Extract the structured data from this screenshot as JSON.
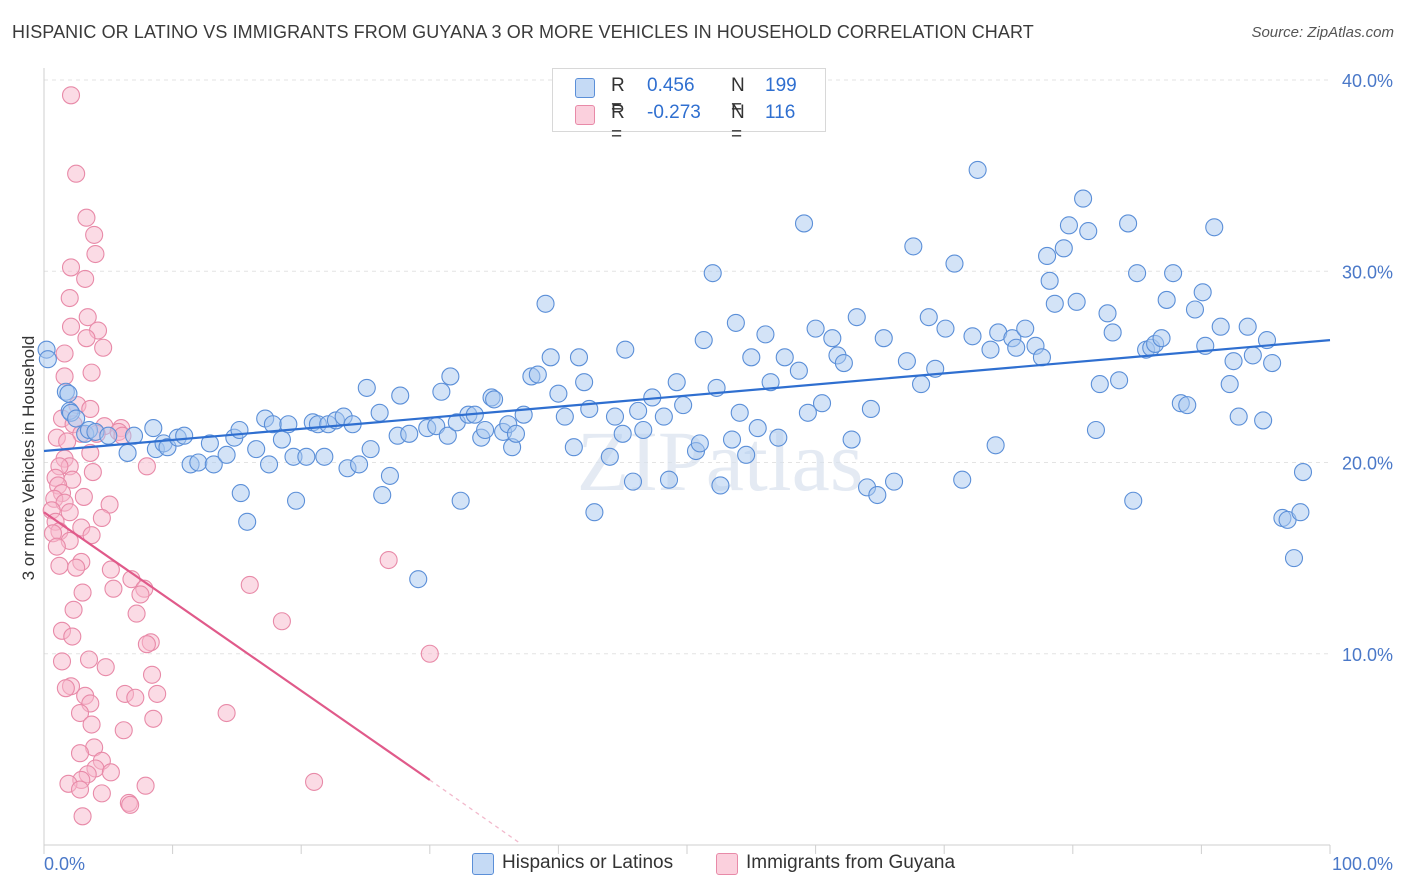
{
  "title": "HISPANIC OR LATINO VS IMMIGRANTS FROM GUYANA 3 OR MORE VEHICLES IN HOUSEHOLD CORRELATION CHART",
  "source": "Source: ZipAtlas.com",
  "watermark": "ZIPatlas",
  "legend": {
    "rows": [
      {
        "r_label": "R =",
        "r_value": "0.456",
        "n_label": "N =",
        "n_value": "199",
        "color": "#a8c8f0"
      },
      {
        "r_label": "R =",
        "r_value": "-0.273",
        "n_label": "N =",
        "n_value": "116",
        "color": "#f8b8cc"
      }
    ]
  },
  "bottom_legend": [
    {
      "label": "Hispanics or Latinos",
      "color": "#a8c8f0"
    },
    {
      "label": "Immigrants from Guyana",
      "color": "#f8b8cc"
    }
  ],
  "chart_data": {
    "type": "scatter",
    "xlabel": "",
    "ylabel": "3 or more Vehicles in Household",
    "xlim": [
      0,
      100
    ],
    "ylim": [
      0,
      40
    ],
    "x_tick_labels": [
      "0.0%",
      "100.0%"
    ],
    "y_ticks": [
      10,
      20,
      30,
      40
    ],
    "y_tick_labels": [
      "10.0%",
      "20.0%",
      "30.0%",
      "40.0%"
    ],
    "grid": true,
    "legend_position": "top-center",
    "colors": {
      "blue_fill": "#a8c8f0",
      "blue_stroke": "#5b8fd8",
      "blue_line": "#2f6fd0",
      "pink_fill": "#f8b8cc",
      "pink_stroke": "#e88aa8",
      "pink_line": "#e05a8a"
    },
    "series": [
      {
        "name": "Hispanics or Latinos",
        "trend": {
          "x": [
            0,
            100
          ],
          "y": [
            20.6,
            26.4
          ]
        },
        "points": [
          [
            0.2,
            25.9
          ],
          [
            0.3,
            25.4
          ],
          [
            1.7,
            23.7
          ],
          [
            1.9,
            23.6
          ],
          [
            2.0,
            22.7
          ],
          [
            2.1,
            22.6
          ],
          [
            2.5,
            22.3
          ],
          [
            3.2,
            21.5
          ],
          [
            3.5,
            21.7
          ],
          [
            4.0,
            21.6
          ],
          [
            5.0,
            21.4
          ],
          [
            6.5,
            20.5
          ],
          [
            7.0,
            21.4
          ],
          [
            8.5,
            21.8
          ],
          [
            8.7,
            20.7
          ],
          [
            9.3,
            21.0
          ],
          [
            9.6,
            20.8
          ],
          [
            10.4,
            21.3
          ],
          [
            10.9,
            21.4
          ],
          [
            11.4,
            19.9
          ],
          [
            12.0,
            20.0
          ],
          [
            12.9,
            21.0
          ],
          [
            13.2,
            19.9
          ],
          [
            14.2,
            20.4
          ],
          [
            14.8,
            21.3
          ],
          [
            15.2,
            21.7
          ],
          [
            15.3,
            18.4
          ],
          [
            15.8,
            16.9
          ],
          [
            16.5,
            20.7
          ],
          [
            17.2,
            22.3
          ],
          [
            17.5,
            19.9
          ],
          [
            17.8,
            22.0
          ],
          [
            18.5,
            21.2
          ],
          [
            19.0,
            22.0
          ],
          [
            19.4,
            20.3
          ],
          [
            19.6,
            18.0
          ],
          [
            20.4,
            20.3
          ],
          [
            20.9,
            22.1
          ],
          [
            21.3,
            22.0
          ],
          [
            21.8,
            20.3
          ],
          [
            22.1,
            22.0
          ],
          [
            22.7,
            22.2
          ],
          [
            23.3,
            22.4
          ],
          [
            23.6,
            19.7
          ],
          [
            24.0,
            22.0
          ],
          [
            24.5,
            19.9
          ],
          [
            25.1,
            23.9
          ],
          [
            25.4,
            20.7
          ],
          [
            26.1,
            22.6
          ],
          [
            26.3,
            18.3
          ],
          [
            26.9,
            19.3
          ],
          [
            27.5,
            21.4
          ],
          [
            27.7,
            23.5
          ],
          [
            28.4,
            21.5
          ],
          [
            29.1,
            13.9
          ],
          [
            29.8,
            21.8
          ],
          [
            30.5,
            21.9
          ],
          [
            30.9,
            23.7
          ],
          [
            31.4,
            21.4
          ],
          [
            31.6,
            24.5
          ],
          [
            32.1,
            22.1
          ],
          [
            32.4,
            18.0
          ],
          [
            33.0,
            22.5
          ],
          [
            33.5,
            22.5
          ],
          [
            34.0,
            21.3
          ],
          [
            34.3,
            21.7
          ],
          [
            34.8,
            23.4
          ],
          [
            35.0,
            23.3
          ],
          [
            35.7,
            21.6
          ],
          [
            36.1,
            22.0
          ],
          [
            36.4,
            20.8
          ],
          [
            36.7,
            21.5
          ],
          [
            37.3,
            22.5
          ],
          [
            37.9,
            24.5
          ],
          [
            38.4,
            24.6
          ],
          [
            39.0,
            28.3
          ],
          [
            39.4,
            25.5
          ],
          [
            40.0,
            23.6
          ],
          [
            40.5,
            22.4
          ],
          [
            41.2,
            20.8
          ],
          [
            41.6,
            25.5
          ],
          [
            42.0,
            24.2
          ],
          [
            42.4,
            22.8
          ],
          [
            42.8,
            17.4
          ],
          [
            44.0,
            20.3
          ],
          [
            44.4,
            22.4
          ],
          [
            45.0,
            21.5
          ],
          [
            45.2,
            25.9
          ],
          [
            45.8,
            19.0
          ],
          [
            46.2,
            22.7
          ],
          [
            46.6,
            21.7
          ],
          [
            47.3,
            23.4
          ],
          [
            48.2,
            22.4
          ],
          [
            48.6,
            19.1
          ],
          [
            49.2,
            24.2
          ],
          [
            49.7,
            23.0
          ],
          [
            50.7,
            20.6
          ],
          [
            51.0,
            21.0
          ],
          [
            51.3,
            26.4
          ],
          [
            52.0,
            29.9
          ],
          [
            52.3,
            23.9
          ],
          [
            52.6,
            18.8
          ],
          [
            53.5,
            21.2
          ],
          [
            53.8,
            27.3
          ],
          [
            54.1,
            22.6
          ],
          [
            54.6,
            20.4
          ],
          [
            55.0,
            25.5
          ],
          [
            55.5,
            21.8
          ],
          [
            56.1,
            26.7
          ],
          [
            56.5,
            24.2
          ],
          [
            57.1,
            21.3
          ],
          [
            57.6,
            25.5
          ],
          [
            58.7,
            24.8
          ],
          [
            59.1,
            32.5
          ],
          [
            59.4,
            22.6
          ],
          [
            60.0,
            27.0
          ],
          [
            60.5,
            23.1
          ],
          [
            61.3,
            26.5
          ],
          [
            61.7,
            25.6
          ],
          [
            62.2,
            25.2
          ],
          [
            62.8,
            21.2
          ],
          [
            63.2,
            27.6
          ],
          [
            64.0,
            18.7
          ],
          [
            64.3,
            22.8
          ],
          [
            64.8,
            18.3
          ],
          [
            65.3,
            26.5
          ],
          [
            66.1,
            19.0
          ],
          [
            67.1,
            25.3
          ],
          [
            67.6,
            31.3
          ],
          [
            68.2,
            24.1
          ],
          [
            68.8,
            27.6
          ],
          [
            69.3,
            24.9
          ],
          [
            70.1,
            27.0
          ],
          [
            70.8,
            30.4
          ],
          [
            71.4,
            19.1
          ],
          [
            72.2,
            26.6
          ],
          [
            72.6,
            35.3
          ],
          [
            73.6,
            25.9
          ],
          [
            74.0,
            20.9
          ],
          [
            74.2,
            26.8
          ],
          [
            75.3,
            26.5
          ],
          [
            75.6,
            26.0
          ],
          [
            76.3,
            27.0
          ],
          [
            77.1,
            26.1
          ],
          [
            77.6,
            25.5
          ],
          [
            78.0,
            30.8
          ],
          [
            78.2,
            29.5
          ],
          [
            78.6,
            28.3
          ],
          [
            79.3,
            31.2
          ],
          [
            79.7,
            32.4
          ],
          [
            80.3,
            28.4
          ],
          [
            80.8,
            33.8
          ],
          [
            81.2,
            32.1
          ],
          [
            81.8,
            21.7
          ],
          [
            82.1,
            24.1
          ],
          [
            82.7,
            27.8
          ],
          [
            83.1,
            26.8
          ],
          [
            83.6,
            24.3
          ],
          [
            84.3,
            32.5
          ],
          [
            84.7,
            18.0
          ],
          [
            85.0,
            29.9
          ],
          [
            85.7,
            25.9
          ],
          [
            86.1,
            26.0
          ],
          [
            86.4,
            26.2
          ],
          [
            86.9,
            26.5
          ],
          [
            87.3,
            28.5
          ],
          [
            87.8,
            29.9
          ],
          [
            88.4,
            23.1
          ],
          [
            88.9,
            23.0
          ],
          [
            89.5,
            28.0
          ],
          [
            90.1,
            28.9
          ],
          [
            90.3,
            26.1
          ],
          [
            91.0,
            32.3
          ],
          [
            91.5,
            27.1
          ],
          [
            92.2,
            24.1
          ],
          [
            92.5,
            25.3
          ],
          [
            92.9,
            22.4
          ],
          [
            93.6,
            27.1
          ],
          [
            94.0,
            25.6
          ],
          [
            94.8,
            22.2
          ],
          [
            95.1,
            26.4
          ],
          [
            95.5,
            25.2
          ],
          [
            96.3,
            17.1
          ],
          [
            96.7,
            17.0
          ],
          [
            97.2,
            15.0
          ],
          [
            97.7,
            17.4
          ],
          [
            97.9,
            19.5
          ]
        ]
      },
      {
        "name": "Immigrants from Guyana",
        "trend": {
          "x": [
            0,
            30.0
          ],
          "y": [
            17.4,
            3.4
          ]
        },
        "trend_extension": {
          "x": [
            30.0,
            37.0
          ],
          "y": [
            3.4,
            0.1
          ]
        },
        "points": [
          [
            2.1,
            39.2
          ],
          [
            2.5,
            35.1
          ],
          [
            3.3,
            32.8
          ],
          [
            3.9,
            31.9
          ],
          [
            4.0,
            30.9
          ],
          [
            2.1,
            30.2
          ],
          [
            3.2,
            29.6
          ],
          [
            2.0,
            28.6
          ],
          [
            3.4,
            27.6
          ],
          [
            2.1,
            27.1
          ],
          [
            4.2,
            26.9
          ],
          [
            3.3,
            26.5
          ],
          [
            4.6,
            26.0
          ],
          [
            1.6,
            25.7
          ],
          [
            3.7,
            24.7
          ],
          [
            1.6,
            24.5
          ],
          [
            2.6,
            23.0
          ],
          [
            3.6,
            22.8
          ],
          [
            1.4,
            22.3
          ],
          [
            2.3,
            22.0
          ],
          [
            4.7,
            21.9
          ],
          [
            6.0,
            21.8
          ],
          [
            5.8,
            21.6
          ],
          [
            2.9,
            21.5
          ],
          [
            6.1,
            21.4
          ],
          [
            1.0,
            21.3
          ],
          [
            1.8,
            21.1
          ],
          [
            4.1,
            21.5
          ],
          [
            3.6,
            20.5
          ],
          [
            1.6,
            20.2
          ],
          [
            2.0,
            19.8
          ],
          [
            8.0,
            19.8
          ],
          [
            1.2,
            19.8
          ],
          [
            3.8,
            19.5
          ],
          [
            0.9,
            19.2
          ],
          [
            2.2,
            19.1
          ],
          [
            1.1,
            18.8
          ],
          [
            1.4,
            18.4
          ],
          [
            3.1,
            18.2
          ],
          [
            0.8,
            18.1
          ],
          [
            1.6,
            17.9
          ],
          [
            5.1,
            17.8
          ],
          [
            0.6,
            17.5
          ],
          [
            2.0,
            17.4
          ],
          [
            4.5,
            17.1
          ],
          [
            0.9,
            16.9
          ],
          [
            2.9,
            16.6
          ],
          [
            1.2,
            16.4
          ],
          [
            0.7,
            16.3
          ],
          [
            3.7,
            16.2
          ],
          [
            2.0,
            15.9
          ],
          [
            1.0,
            15.6
          ],
          [
            26.8,
            14.9
          ],
          [
            2.9,
            14.8
          ],
          [
            1.2,
            14.6
          ],
          [
            2.5,
            14.5
          ],
          [
            5.2,
            14.4
          ],
          [
            6.8,
            13.9
          ],
          [
            7.8,
            13.4
          ],
          [
            5.4,
            13.4
          ],
          [
            16.0,
            13.6
          ],
          [
            3.0,
            13.2
          ],
          [
            7.5,
            13.1
          ],
          [
            2.3,
            12.3
          ],
          [
            7.2,
            12.1
          ],
          [
            18.5,
            11.7
          ],
          [
            1.4,
            11.2
          ],
          [
            2.2,
            10.9
          ],
          [
            8.3,
            10.6
          ],
          [
            8.0,
            10.5
          ],
          [
            30.0,
            10.0
          ],
          [
            1.4,
            9.6
          ],
          [
            3.5,
            9.7
          ],
          [
            4.8,
            9.3
          ],
          [
            8.4,
            8.9
          ],
          [
            2.1,
            8.3
          ],
          [
            1.7,
            8.2
          ],
          [
            3.2,
            7.8
          ],
          [
            6.3,
            7.9
          ],
          [
            8.8,
            7.9
          ],
          [
            7.1,
            7.7
          ],
          [
            3.6,
            7.4
          ],
          [
            2.8,
            6.9
          ],
          [
            14.2,
            6.9
          ],
          [
            8.5,
            6.6
          ],
          [
            3.7,
            6.3
          ],
          [
            6.2,
            6.0
          ],
          [
            3.9,
            5.1
          ],
          [
            2.8,
            4.8
          ],
          [
            4.5,
            4.4
          ],
          [
            4.0,
            4.0
          ],
          [
            3.4,
            3.7
          ],
          [
            5.2,
            3.8
          ],
          [
            2.9,
            3.4
          ],
          [
            21.0,
            3.3
          ],
          [
            1.9,
            3.2
          ],
          [
            7.9,
            3.1
          ],
          [
            2.8,
            2.9
          ],
          [
            4.5,
            2.7
          ],
          [
            6.6,
            2.2
          ],
          [
            6.7,
            2.1
          ],
          [
            3.0,
            1.5
          ]
        ]
      }
    ]
  }
}
